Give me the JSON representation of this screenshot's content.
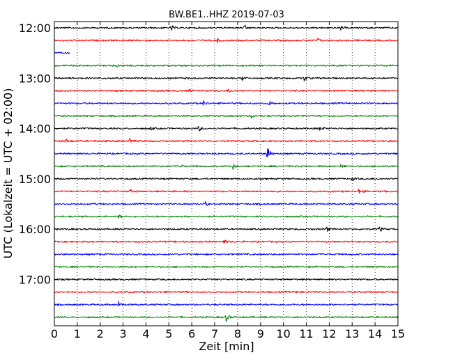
{
  "chart_data": {
    "type": "line",
    "title": "BW.BE1..HHZ 2019-07-03",
    "xlabel": "Zeit  [min]",
    "ylabel": "UTC (Lokalzeit = UTC + 02:00)",
    "xlim": [
      0,
      15
    ],
    "x_ticks": [
      "0",
      "1",
      "2",
      "3",
      "4",
      "5",
      "6",
      "7",
      "8",
      "9",
      "10",
      "11",
      "12",
      "13",
      "14",
      "15"
    ],
    "y_tick_labels": [
      {
        "row": 0,
        "label": "12:00"
      },
      {
        "row": 4,
        "label": "13:00"
      },
      {
        "row": 8,
        "label": "14:00"
      },
      {
        "row": 12,
        "label": "15:00"
      },
      {
        "row": 16,
        "label": "16:00"
      },
      {
        "row": 20,
        "label": "17:00"
      }
    ],
    "grid": "vertical dotted at each minute",
    "color_cycle": [
      "#000000",
      "#ff0000",
      "#0000ff",
      "#008000"
    ],
    "traces": [
      {
        "start": "12:00",
        "color": "#000000",
        "x_end": 15,
        "events": [
          {
            "t": 5.1,
            "amp": 0.5
          },
          {
            "t": 8.3,
            "amp": 0.4
          },
          {
            "t": 12.5,
            "amp": 0.35
          }
        ]
      },
      {
        "start": "12:15",
        "color": "#ff0000",
        "x_end": 15,
        "events": [
          {
            "t": 7.1,
            "amp": 0.35
          },
          {
            "t": 11.5,
            "amp": 0.4
          }
        ]
      },
      {
        "start": "12:30",
        "color": "#0000ff",
        "x_end": 0.7,
        "events": []
      },
      {
        "start": "12:45",
        "color": "#008000",
        "x_end": 15,
        "events": [
          {
            "t": 2.7,
            "amp": 0.3
          }
        ]
      },
      {
        "start": "13:00",
        "color": "#000000",
        "x_end": 15,
        "events": [
          {
            "t": 8.2,
            "amp": 0.45
          },
          {
            "t": 10.9,
            "amp": 0.55
          }
        ]
      },
      {
        "start": "13:15",
        "color": "#ff0000",
        "x_end": 15,
        "events": [
          {
            "t": 5.9,
            "amp": 0.3
          },
          {
            "t": 7.6,
            "amp": 0.4
          }
        ]
      },
      {
        "start": "13:30",
        "color": "#0000ff",
        "x_end": 15,
        "events": [
          {
            "t": 6.5,
            "amp": 0.45
          },
          {
            "t": 9.4,
            "amp": 0.45
          }
        ]
      },
      {
        "start": "13:45",
        "color": "#008000",
        "x_end": 15,
        "events": [
          {
            "t": 8.6,
            "amp": 0.4
          }
        ]
      },
      {
        "start": "14:00",
        "color": "#000000",
        "x_end": 15,
        "events": [
          {
            "t": 4.2,
            "amp": 0.3
          },
          {
            "t": 6.3,
            "amp": 0.5
          },
          {
            "t": 11.6,
            "amp": 0.45
          }
        ]
      },
      {
        "start": "14:15",
        "color": "#ff0000",
        "x_end": 15,
        "events": [
          {
            "t": 0.5,
            "amp": 0.35
          },
          {
            "t": 3.3,
            "amp": 0.5
          }
        ]
      },
      {
        "start": "14:30",
        "color": "#0000ff",
        "x_end": 15,
        "events": [
          {
            "t": 9.3,
            "amp": 1.7
          }
        ]
      },
      {
        "start": "14:45",
        "color": "#008000",
        "x_end": 15,
        "events": [
          {
            "t": 5.5,
            "amp": 0.4
          },
          {
            "t": 7.8,
            "amp": 0.5
          },
          {
            "t": 12.5,
            "amp": 0.4
          }
        ]
      },
      {
        "start": "15:00",
        "color": "#000000",
        "x_end": 15,
        "events": [
          {
            "t": 13.0,
            "amp": 0.35
          }
        ]
      },
      {
        "start": "15:15",
        "color": "#ff0000",
        "x_end": 15,
        "events": [
          {
            "t": 3.3,
            "amp": 0.3
          },
          {
            "t": 13.3,
            "amp": 0.45
          }
        ]
      },
      {
        "start": "15:30",
        "color": "#0000ff",
        "x_end": 15,
        "events": [
          {
            "t": 6.6,
            "amp": 0.35
          }
        ]
      },
      {
        "start": "15:45",
        "color": "#008000",
        "x_end": 15,
        "events": [
          {
            "t": 2.8,
            "amp": 0.3
          }
        ]
      },
      {
        "start": "16:00",
        "color": "#000000",
        "x_end": 15,
        "events": [
          {
            "t": 11.9,
            "amp": 0.45
          },
          {
            "t": 14.2,
            "amp": 0.45
          }
        ]
      },
      {
        "start": "16:15",
        "color": "#ff0000",
        "x_end": 15,
        "events": [
          {
            "t": 7.4,
            "amp": 0.3
          }
        ]
      },
      {
        "start": "16:30",
        "color": "#0000ff",
        "x_end": 15,
        "events": []
      },
      {
        "start": "16:45",
        "color": "#008000",
        "x_end": 15,
        "events": []
      },
      {
        "start": "17:00",
        "color": "#000000",
        "x_end": 15,
        "events": []
      },
      {
        "start": "17:15",
        "color": "#ff0000",
        "x_end": 15,
        "events": [
          {
            "t": 10.6,
            "amp": 0.25
          }
        ]
      },
      {
        "start": "17:30",
        "color": "#0000ff",
        "x_end": 15,
        "events": [
          {
            "t": 2.8,
            "amp": 0.55
          }
        ]
      },
      {
        "start": "17:45",
        "color": "#008000",
        "x_end": 15,
        "events": [
          {
            "t": 7.5,
            "amp": 0.7
          }
        ]
      }
    ]
  }
}
